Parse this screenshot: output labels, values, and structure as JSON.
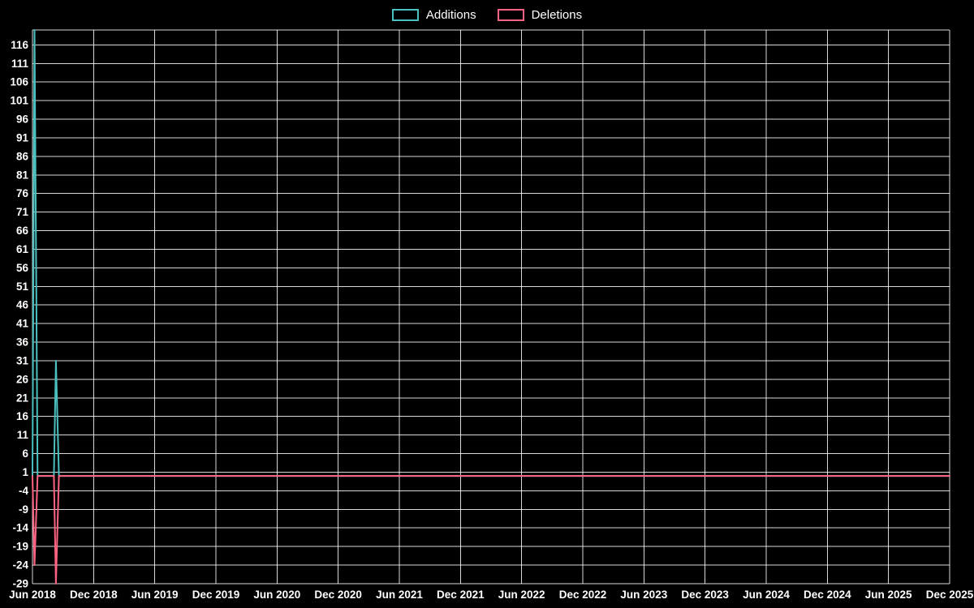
{
  "chart_data": {
    "type": "line",
    "title": "",
    "legend_position": "top-center",
    "background_color": "#000000",
    "grid": true,
    "grid_color": "#ffffff",
    "grid_opacity": 0.85,
    "text_color": "#ffffff",
    "x_axis": {
      "min_month": 0,
      "max_month": 90,
      "ticks": [
        {
          "label": "Jun 2018",
          "month": 0
        },
        {
          "label": "Dec 2018",
          "month": 6
        },
        {
          "label": "Jun 2019",
          "month": 12
        },
        {
          "label": "Dec 2019",
          "month": 18
        },
        {
          "label": "Jun 2020",
          "month": 24
        },
        {
          "label": "Dec 2020",
          "month": 30
        },
        {
          "label": "Jun 2021",
          "month": 36
        },
        {
          "label": "Dec 2021",
          "month": 42
        },
        {
          "label": "Jun 2022",
          "month": 48
        },
        {
          "label": "Dec 2022",
          "month": 54
        },
        {
          "label": "Jun 2023",
          "month": 60
        },
        {
          "label": "Dec 2023",
          "month": 66
        },
        {
          "label": "Jun 2024",
          "month": 72
        },
        {
          "label": "Dec 2024",
          "month": 78
        },
        {
          "label": "Jun 2025",
          "month": 84
        },
        {
          "label": "Dec 2025",
          "month": 90
        }
      ]
    },
    "y_axis": {
      "min": -29,
      "max": 120,
      "tick_step": 5,
      "ticks": [
        116,
        111,
        106,
        101,
        96,
        91,
        86,
        81,
        76,
        71,
        66,
        61,
        56,
        51,
        46,
        41,
        36,
        31,
        26,
        21,
        16,
        11,
        6,
        1,
        -4,
        -9,
        -14,
        -19,
        -24,
        -29
      ]
    },
    "series": [
      {
        "name": "Additions",
        "color": "#4bc0c0",
        "points": [
          [
            0,
            0
          ],
          [
            0.2,
            120
          ],
          [
            0.5,
            0
          ],
          [
            2.1,
            0
          ],
          [
            2.3,
            31
          ],
          [
            2.6,
            0
          ],
          [
            90,
            0
          ]
        ]
      },
      {
        "name": "Deletions",
        "color": "#ff6384",
        "points": [
          [
            0,
            0
          ],
          [
            0.2,
            -24
          ],
          [
            0.5,
            0
          ],
          [
            2.1,
            0
          ],
          [
            2.3,
            -29
          ],
          [
            2.6,
            0
          ],
          [
            90,
            0
          ]
        ]
      }
    ]
  }
}
